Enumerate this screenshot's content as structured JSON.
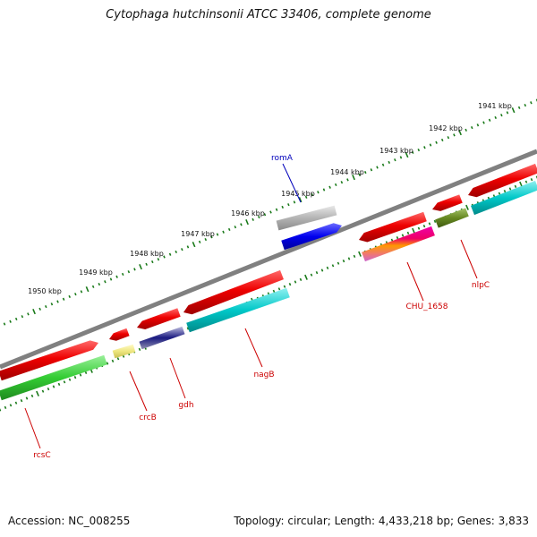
{
  "title": "Cytophaga hutchinsonii ATCC 33406, complete genome",
  "footer": {
    "accession": "Accession: NC_008255",
    "topology": "Topology: circular; Length: 4,433,218 bp; Genes: 3,833"
  },
  "ticks": [
    "1941 kbp",
    "1942 kbp",
    "1943 kbp",
    "1944 kbp",
    "1945 kbp",
    "1946 kbp",
    "1947 kbp",
    "1948 kbp",
    "1949 kbp",
    "1950 kbp"
  ],
  "gene_labels": [
    "romA",
    "CHU_1658",
    "nlpC",
    "nagB",
    "gdh",
    "crcB",
    "rcsC"
  ],
  "colors": {
    "backbone": "#808080",
    "dots": "#1a7a1a",
    "red": "#ee0000",
    "cyan": "#00c8c8",
    "blue": "#0000ee",
    "gray": "#b4b4b4",
    "green": "#33cc33",
    "olive": "#668822",
    "navy": "#1a1a80",
    "yellow": "#eee680",
    "label_blue": "#0000bb",
    "label_red": "#cc0000"
  }
}
